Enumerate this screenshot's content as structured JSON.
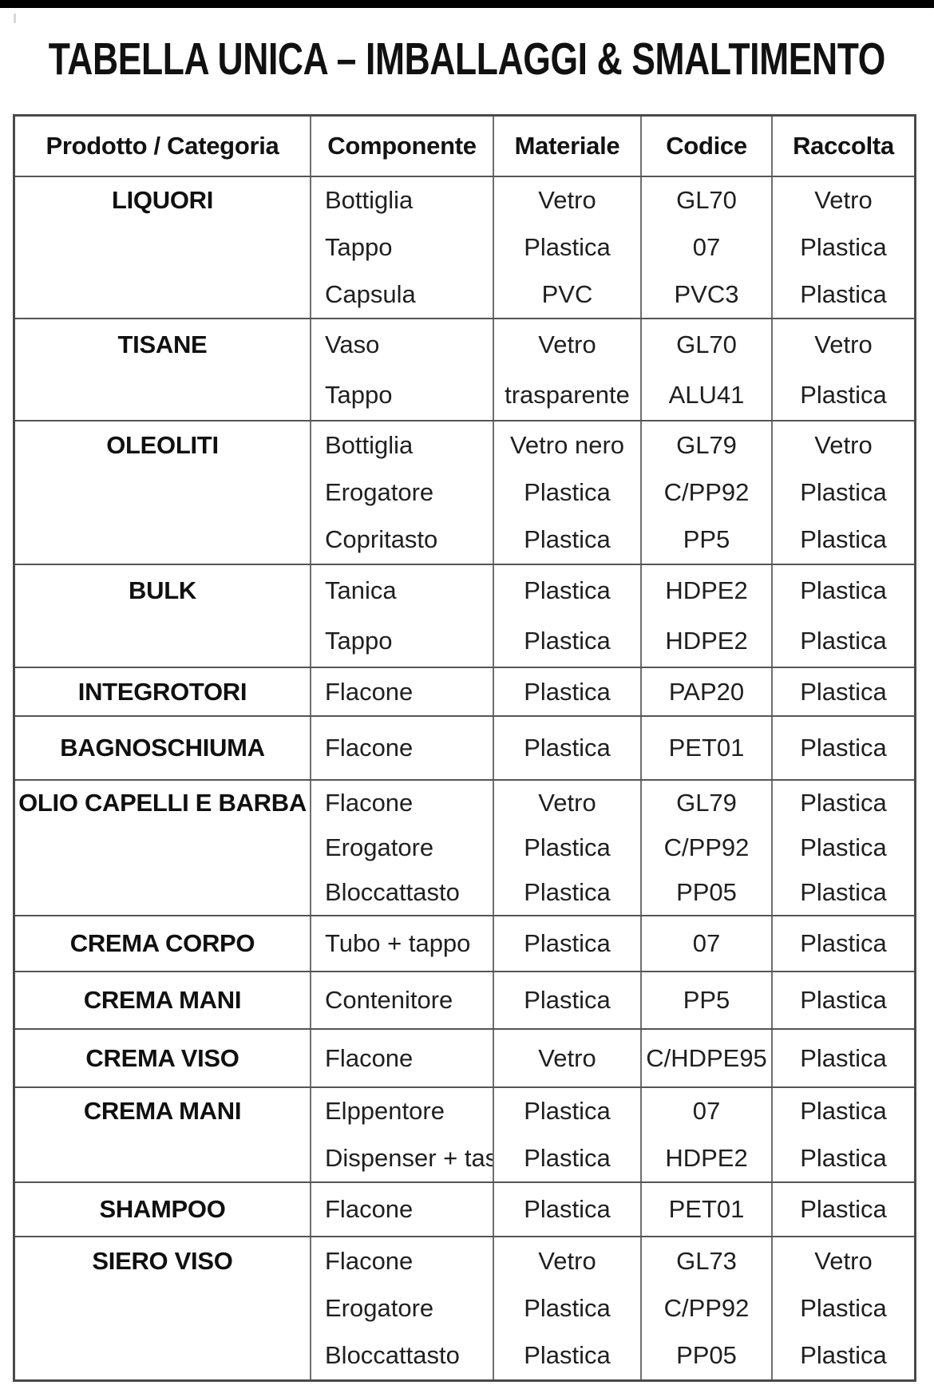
{
  "page": {
    "title": "TABELLA UNICA – IMBALLAGGI & SMALTIMENTO"
  },
  "table": {
    "columns": [
      "Prodotto / Categoria",
      "Componente",
      "Materiale",
      "Codice",
      "Raccolta"
    ],
    "groups": [
      {
        "product": "LIQUORI",
        "rows": [
          {
            "componente": "Bottiglia",
            "materiale": "Vetro",
            "codice": "GL70",
            "raccolta": "Vetro"
          },
          {
            "componente": "Tappo",
            "materiale": "Plastica",
            "codice": "07",
            "raccolta": "Plastica"
          },
          {
            "componente": "Capsula",
            "materiale": "PVC",
            "codice": "PVC3",
            "raccolta": "Plastica"
          }
        ]
      },
      {
        "product": "TISANE",
        "rows": [
          {
            "componente": "Vaso",
            "materiale": "Vetro",
            "codice": "GL70",
            "raccolta": "Vetro"
          },
          {
            "componente": "Tappo",
            "materiale": "trasparente",
            "codice": "ALU41",
            "raccolta": "Plastica"
          }
        ]
      },
      {
        "product": "OLEOLITI",
        "rows": [
          {
            "componente": "Bottiglia",
            "materiale": "Vetro nero",
            "codice": "GL79",
            "raccolta": "Vetro"
          },
          {
            "componente": "Erogatore",
            "materiale": "Plastica",
            "codice": "C/PP92",
            "raccolta": "Plastica"
          },
          {
            "componente": "Copritasto",
            "materiale": "Plastica",
            "codice": "PP5",
            "raccolta": "Plastica"
          }
        ]
      },
      {
        "product": "BULK",
        "rows": [
          {
            "componente": "Tanica",
            "materiale": "Plastica",
            "codice": "HDPE2",
            "raccolta": "Plastica"
          },
          {
            "componente": "Tappo",
            "materiale": "Plastica",
            "codice": "HDPE2",
            "raccolta": "Plastica"
          }
        ]
      },
      {
        "product": "INTEGROTORI",
        "rows": [
          {
            "componente": "Flacone",
            "materiale": "Plastica",
            "codice": "PAP20",
            "raccolta": "Plastica"
          }
        ]
      },
      {
        "product": "BAGNOSCHIUMA",
        "rows": [
          {
            "componente": "Flacone",
            "materiale": "Plastica",
            "codice": "PET01",
            "raccolta": "Plastica"
          }
        ]
      },
      {
        "product": "OLIO CAPELLI E BARBA",
        "rows": [
          {
            "componente": "Flacone",
            "materiale": "Vetro",
            "codice": "GL79",
            "raccolta": "Plastica"
          },
          {
            "componente": "Erogatore",
            "materiale": "Plastica",
            "codice": "C/PP92",
            "raccolta": "Plastica"
          },
          {
            "componente": "Bloccattasto",
            "materiale": "Plastica",
            "codice": "PP05",
            "raccolta": "Plastica"
          }
        ]
      },
      {
        "product": "CREMA CORPO",
        "rows": [
          {
            "componente": "Tubo + tappo",
            "materiale": "Plastica",
            "codice": "07",
            "raccolta": "Plastica"
          }
        ]
      },
      {
        "product": "CREMA MANI",
        "rows": [
          {
            "componente": "Contenitore",
            "materiale": "Plastica",
            "codice": "PP5",
            "raccolta": "Plastica"
          }
        ]
      },
      {
        "product": "CREMA VISO",
        "rows": [
          {
            "componente": "Flacone",
            "materiale": "Vetro",
            "codice": "C/HDPE95",
            "raccolta": "Plastica"
          }
        ]
      },
      {
        "product": "CREMA MANI",
        "rows": [
          {
            "componente": "Elppentore",
            "materiale": "Plastica",
            "codice": "07",
            "raccolta": "Plastica"
          },
          {
            "componente": "Dispenser + tas",
            "materiale": "Plastica",
            "codice": "HDPE2",
            "raccolta": "Plastica"
          }
        ]
      },
      {
        "product": "SHAMPOO",
        "rows": [
          {
            "componente": "Flacone",
            "materiale": "Plastica",
            "codice": "PET01",
            "raccolta": "Plastica"
          }
        ]
      },
      {
        "product": "SIERO VISO",
        "rows": [
          {
            "componente": "Flacone",
            "materiale": "Vetro",
            "codice": "GL73",
            "raccolta": "Vetro"
          },
          {
            "componente": "Erogatore",
            "materiale": "Plastica",
            "codice": "C/PP92",
            "raccolta": "Plastica"
          },
          {
            "componente": "Bloccattasto",
            "materiale": "Plastica",
            "codice": "PP05",
            "raccolta": "Plastica"
          }
        ]
      }
    ]
  }
}
